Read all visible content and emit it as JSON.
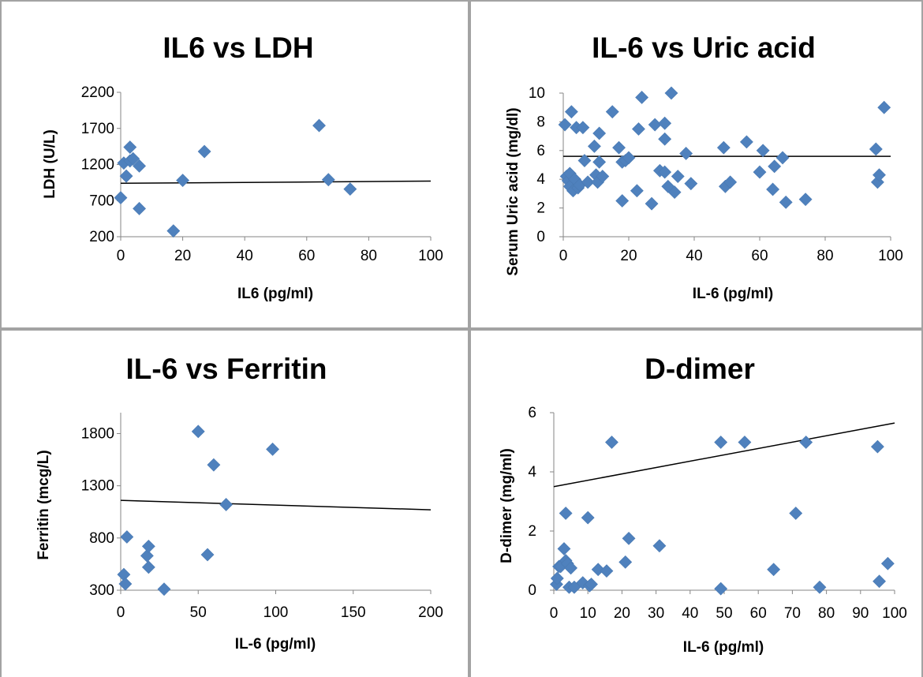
{
  "chart_data": [
    {
      "type": "scatter",
      "title": "IL6 vs LDH",
      "xlabel": "IL6 (pg/ml)",
      "ylabel": "LDH (U/L)",
      "xlim": [
        0,
        100
      ],
      "ylim": [
        200,
        2200
      ],
      "xticks": [
        0,
        20,
        40,
        60,
        80,
        100
      ],
      "yticks": [
        200,
        700,
        1200,
        1700,
        2200
      ],
      "grid": false,
      "series": [
        {
          "points": [
            [
              0,
              740
            ],
            [
              1,
              1220
            ],
            [
              1.8,
              1040
            ],
            [
              3,
              1250
            ],
            [
              3,
              1440
            ],
            [
              4,
              1280
            ],
            [
              6,
              1180
            ],
            [
              6,
              590
            ],
            [
              17,
              280
            ],
            [
              20,
              980
            ],
            [
              27,
              1380
            ],
            [
              64,
              1740
            ],
            [
              67,
              990
            ],
            [
              74,
              860
            ]
          ],
          "trendline": [
            [
              0,
              940
            ],
            [
              100,
              970
            ]
          ]
        }
      ]
    },
    {
      "type": "scatter",
      "title": "IL-6 vs Uric acid",
      "xlabel": "IL-6 (pg/ml)",
      "ylabel": "Serum Uric acid (mg/dl)",
      "xlim": [
        0,
        100
      ],
      "ylim": [
        0,
        10
      ],
      "xticks": [
        0,
        20,
        40,
        60,
        80,
        100
      ],
      "yticks": [
        0,
        2,
        4,
        6,
        8,
        10
      ],
      "grid": false,
      "series": [
        {
          "points": [
            [
              0.5,
              7.8
            ],
            [
              1,
              4.2
            ],
            [
              1.5,
              3.9
            ],
            [
              2,
              4.4
            ],
            [
              2,
              3.5
            ],
            [
              2.5,
              8.7
            ],
            [
              3,
              3.2
            ],
            [
              3.5,
              4.0
            ],
            [
              4,
              7.6
            ],
            [
              4.5,
              3.4
            ],
            [
              5,
              3.6
            ],
            [
              6,
              7.6
            ],
            [
              6.5,
              5.3
            ],
            [
              7.5,
              3.8
            ],
            [
              9.5,
              6.3
            ],
            [
              10,
              4.3
            ],
            [
              10.5,
              3.8
            ],
            [
              11,
              7.2
            ],
            [
              11,
              5.2
            ],
            [
              12,
              4.2
            ],
            [
              15,
              8.7
            ],
            [
              17,
              6.2
            ],
            [
              18,
              2.5
            ],
            [
              18,
              5.2
            ],
            [
              19,
              5.3
            ],
            [
              20,
              5.5
            ],
            [
              22.5,
              3.2
            ],
            [
              23,
              7.5
            ],
            [
              24,
              9.7
            ],
            [
              27,
              2.3
            ],
            [
              28,
              7.8
            ],
            [
              29.5,
              4.6
            ],
            [
              31,
              4.5
            ],
            [
              31,
              7.9
            ],
            [
              31,
              6.8
            ],
            [
              32,
              3.5
            ],
            [
              33,
              10.0
            ],
            [
              34,
              3.1
            ],
            [
              35,
              4.2
            ],
            [
              37.5,
              5.8
            ],
            [
              39,
              3.7
            ],
            [
              49,
              6.2
            ],
            [
              49.5,
              3.5
            ],
            [
              51,
              3.8
            ],
            [
              56,
              6.6
            ],
            [
              60,
              4.5
            ],
            [
              61,
              6.0
            ],
            [
              64,
              3.3
            ],
            [
              64.5,
              4.9
            ],
            [
              67,
              5.5
            ],
            [
              68,
              2.4
            ],
            [
              74,
              2.6
            ],
            [
              95.5,
              6.1
            ],
            [
              96,
              3.8
            ],
            [
              96.5,
              4.3
            ],
            [
              98,
              9.0
            ]
          ],
          "trendline": [
            [
              0,
              5.6
            ],
            [
              100,
              5.6
            ]
          ]
        }
      ]
    },
    {
      "type": "scatter",
      "title": "IL-6 vs Ferritin",
      "xlabel": "IL-6 (pg/ml)",
      "ylabel": "Ferritin (mcg/L)",
      "xlim": [
        0,
        200
      ],
      "ylim": [
        300,
        2000
      ],
      "xticks": [
        0,
        50,
        100,
        150,
        200
      ],
      "yticks": [
        300,
        800,
        1300,
        1800
      ],
      "grid": false,
      "series": [
        {
          "points": [
            [
              2,
              450
            ],
            [
              3,
              360
            ],
            [
              4,
              810
            ],
            [
              17,
              630
            ],
            [
              18,
              520
            ],
            [
              18,
              720
            ],
            [
              28,
              310
            ],
            [
              50,
              1820
            ],
            [
              56,
              640
            ],
            [
              60,
              1500
            ],
            [
              68,
              1120
            ],
            [
              98,
              1650
            ]
          ],
          "trendline": [
            [
              0,
              1160
            ],
            [
              200,
              1070
            ]
          ]
        }
      ]
    },
    {
      "type": "scatter",
      "title": "D-dimer",
      "xlabel": "IL-6 (pg/ml)",
      "ylabel": "D-dimer (mg/ml)",
      "xlim": [
        0,
        100
      ],
      "ylim": [
        0,
        6
      ],
      "xticks": [
        0,
        10,
        20,
        30,
        40,
        50,
        60,
        70,
        80,
        90,
        100
      ],
      "yticks": [
        0,
        2,
        4,
        6
      ],
      "grid": false,
      "series": [
        {
          "points": [
            [
              0.8,
              0.2
            ],
            [
              1,
              0.4
            ],
            [
              1.5,
              0.8
            ],
            [
              2,
              0.8
            ],
            [
              3,
              1.4
            ],
            [
              3.5,
              1.0
            ],
            [
              3.5,
              2.6
            ],
            [
              4,
              0.9
            ],
            [
              4.5,
              0.1
            ],
            [
              5,
              0.75
            ],
            [
              6,
              0.1
            ],
            [
              8.5,
              0.25
            ],
            [
              10,
              2.45
            ],
            [
              10.5,
              0.15
            ],
            [
              11,
              0.2
            ],
            [
              13,
              0.7
            ],
            [
              15.5,
              0.65
            ],
            [
              17,
              5.0
            ],
            [
              21,
              0.95
            ],
            [
              22,
              1.75
            ],
            [
              31,
              1.5
            ],
            [
              49,
              0.05
            ],
            [
              49,
              5.0
            ],
            [
              56,
              5.0
            ],
            [
              64.5,
              0.7
            ],
            [
              71,
              2.6
            ],
            [
              74,
              5.0
            ],
            [
              78,
              0.1
            ],
            [
              95,
              4.85
            ],
            [
              95.5,
              0.3
            ],
            [
              98,
              0.9
            ]
          ],
          "trendline": [
            [
              0,
              3.5
            ],
            [
              100,
              5.65
            ]
          ]
        }
      ]
    }
  ]
}
